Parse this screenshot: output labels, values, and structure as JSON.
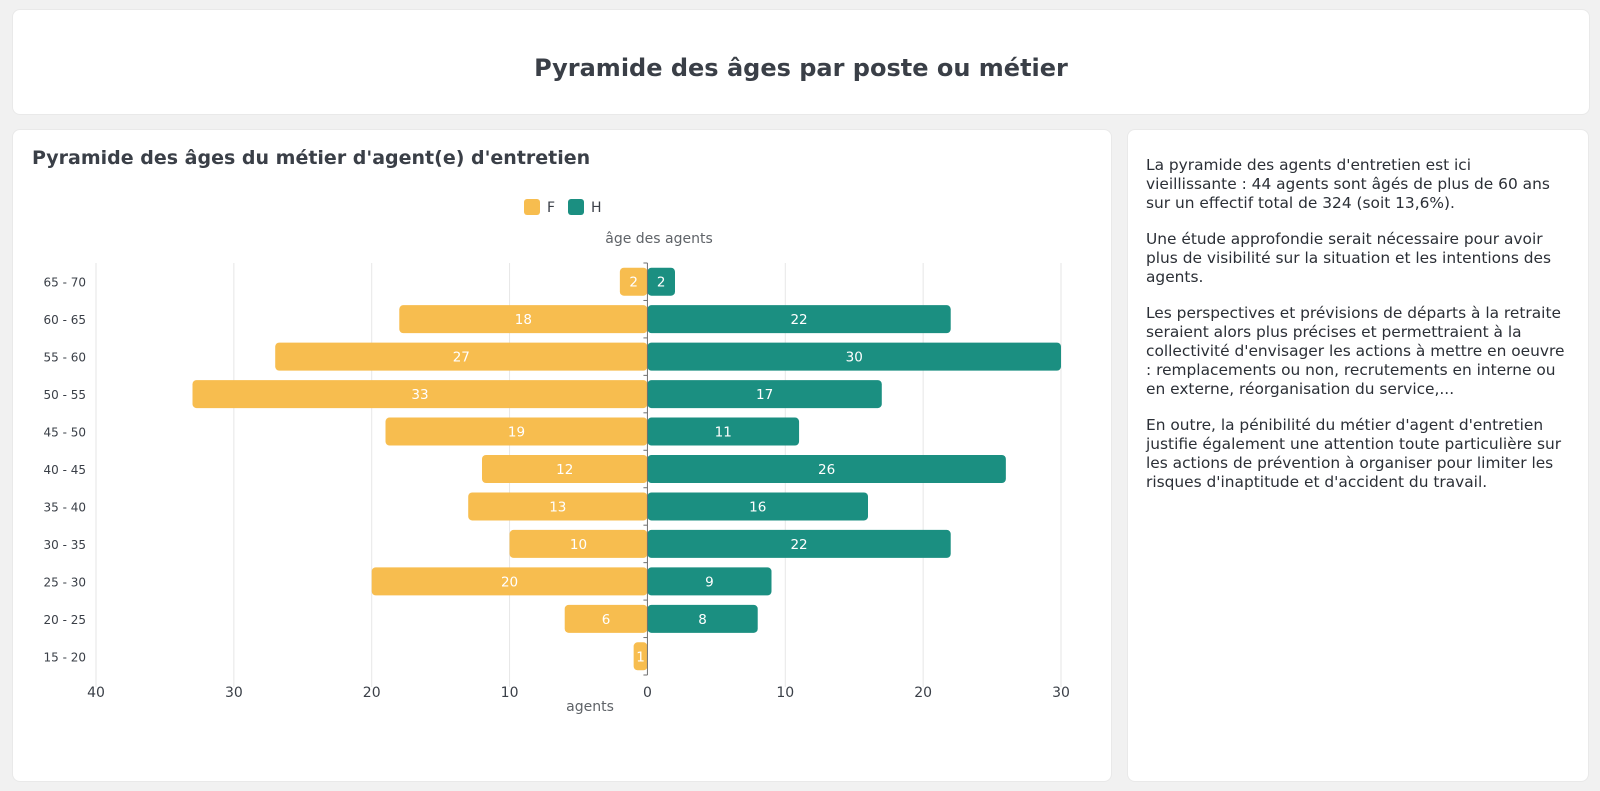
{
  "header": {
    "title": "Pyramide des âges par poste ou métier"
  },
  "chart_panel": {
    "title": "Pyramide des âges du métier d'agent(e) d'entretien"
  },
  "chart_data": {
    "type": "bar",
    "orientation": "horizontal-pyramid",
    "title": "Pyramide des âges du métier d'agent(e) d'entretien",
    "ylabel": "âge des agents",
    "xlabel": "agents",
    "categories": [
      "65 - 70",
      "60 - 65",
      "55 - 60",
      "50 - 55",
      "45 - 50",
      "40 - 45",
      "35 - 40",
      "30 - 35",
      "25 - 30",
      "20 - 25",
      "15 - 20"
    ],
    "series": [
      {
        "name": "F",
        "color": "#f7bd4f",
        "side": "left",
        "values": [
          2,
          18,
          27,
          33,
          19,
          12,
          13,
          10,
          20,
          6,
          1
        ]
      },
      {
        "name": "H",
        "color": "#1b8f81",
        "side": "right",
        "values": [
          2,
          22,
          30,
          17,
          11,
          26,
          16,
          22,
          9,
          8,
          null
        ]
      }
    ],
    "xlim": [
      -40,
      30
    ],
    "xticks": [
      -40,
      -30,
      -20,
      -10,
      0,
      10,
      20,
      30
    ],
    "xtick_labels": [
      "40",
      "30",
      "20",
      "10",
      "0",
      "10",
      "20",
      "30"
    ],
    "grid": true,
    "legend": "top-center"
  },
  "commentary": {
    "paragraphs": [
      "La pyramide des agents d'entretien est ici vieillissante : 44 agents sont âgés de plus de 60 ans sur un effectif total de 324 (soit 13,6%).",
      "Une étude approfondie serait nécessaire pour avoir plus de visibilité sur la situation et les intentions des agents.",
      "Les perspectives et prévisions de départs à la retraite seraient alors plus précises et permettraient à la collectivité d'envisager les actions à mettre en oeuvre : remplacements ou non, recrutements en interne ou en externe, réorganisation du service,...",
      "En outre, la pénibilité du métier d'agent d'entretien justifie également une attention toute particulière sur les actions de prévention à organiser pour limiter les risques d'inaptitude et d'accident du travail."
    ]
  }
}
